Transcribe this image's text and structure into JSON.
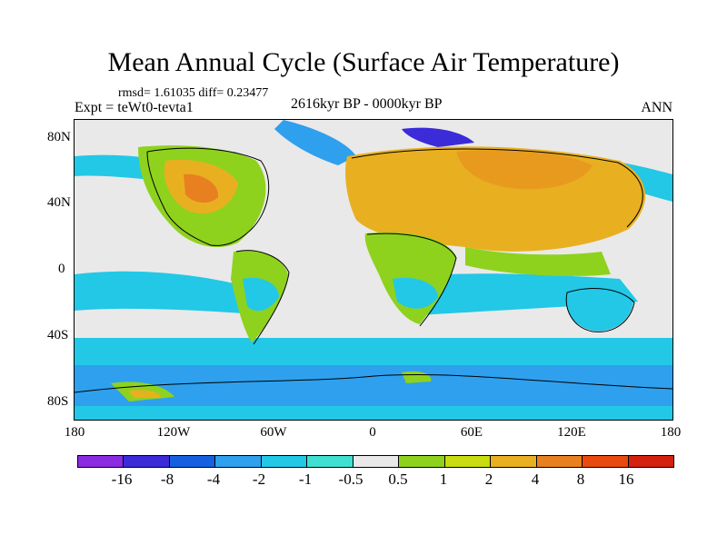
{
  "title": "Mean Annual Cycle (Surface Air Temperature)",
  "stats": "rmsd= 1.61035 diff= 0.23477",
  "experiment": "Expt = teWt0-tevta1",
  "period": "2616kyr BP - 0000kyr BP",
  "season": "ANN",
  "latitude_labels": [
    "80N",
    "40N",
    "0",
    "40S",
    "80S"
  ],
  "longitude_labels": [
    "180",
    "120W",
    "60W",
    "0",
    "60E",
    "120E",
    "180"
  ],
  "colorbar": {
    "labels": [
      "-16",
      "-8",
      "-4",
      "-2",
      "-1",
      "-0.5",
      "0.5",
      "1",
      "2",
      "4",
      "8",
      "16"
    ],
    "colors": [
      "#8a2be2",
      "#3b2bd8",
      "#1560e0",
      "#2ea0ee",
      "#22c8e6",
      "#40e0d0",
      "#e9e9e9",
      "#8ed21e",
      "#c8dc10",
      "#e8b020",
      "#e88020",
      "#e84a10",
      "#d42010"
    ]
  },
  "map_fill_colors": {
    "neutral": "#e9e9e9",
    "cool_light": "#22c8e6",
    "cool_mid": "#2ea0ee",
    "cool_strong": "#1560e0",
    "cool_deep": "#3b2bd8",
    "warm_light": "#8ed21e",
    "warm_mid": "#c8dc10",
    "warm_strong": "#e8b020",
    "warm_hot": "#e88020"
  }
}
